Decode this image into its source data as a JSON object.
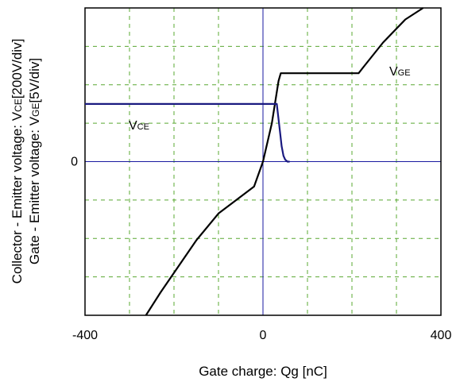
{
  "chart_data": {
    "type": "line",
    "xlabel": "Gate charge: Qg [nC]",
    "ylabel_line1": "Collector - Emitter voltage: V",
    "ylabel_line1_sub": "CE",
    "ylabel_line1_unit": "[200V/div]",
    "ylabel_line2": "Gate - Emitter voltage: V",
    "ylabel_line2_sub": "GE",
    "ylabel_line2_unit": "[5V/div]",
    "xlim": [
      -400,
      400
    ],
    "ylim_div": [
      -4,
      4
    ],
    "x_ticks": [
      -400,
      0,
      400
    ],
    "x_tick_labels": [
      "-400",
      "0",
      "400"
    ],
    "y_tick_labels": [
      {
        "y": 0,
        "label": "0"
      }
    ],
    "grid": true,
    "grid_color": "#5aa832",
    "series": [
      {
        "name_main": "V",
        "name_sub": "GE",
        "color": "#000000",
        "points": [
          [
            -263,
            -4.0
          ],
          [
            -230,
            -3.4
          ],
          [
            -150,
            -2.05
          ],
          [
            -100,
            -1.35
          ],
          [
            -20,
            -0.65
          ],
          [
            0,
            0.0
          ],
          [
            20,
            1.0
          ],
          [
            35,
            2.1
          ],
          [
            40,
            2.3
          ],
          [
            42,
            2.3
          ],
          [
            215,
            2.3
          ],
          [
            225,
            2.45
          ],
          [
            270,
            3.1
          ],
          [
            320,
            3.7
          ],
          [
            360,
            4.0
          ]
        ]
      },
      {
        "name_main": "V",
        "name_sub": "CE",
        "color": "#1a1a80",
        "points": [
          [
            -400,
            1.5
          ],
          [
            31,
            1.5
          ],
          [
            33,
            1.3
          ],
          [
            38,
            0.8
          ],
          [
            42,
            0.4
          ],
          [
            46,
            0.15
          ],
          [
            50,
            0.05
          ],
          [
            55,
            0.0
          ],
          [
            60,
            0.0
          ]
        ]
      }
    ]
  }
}
